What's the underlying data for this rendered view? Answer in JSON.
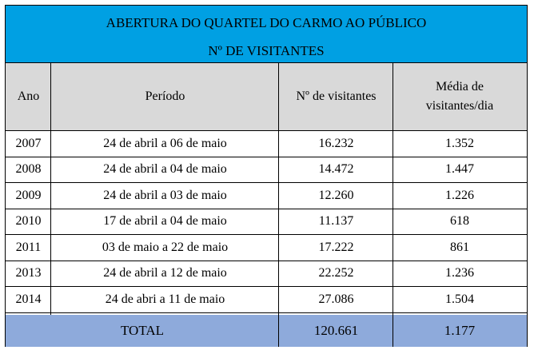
{
  "table": {
    "title_line1": "ABERTURA DO QUARTEL DO CARMO AO PÚBLICO",
    "title_line2": "Nº DE VISITANTES",
    "headers": {
      "ano": "Ano",
      "periodo": "Período",
      "visitantes": "Nº de visitantes",
      "media_line1": "Média de",
      "media_line2": "visitantes/dia"
    },
    "rows": [
      {
        "ano": "2007",
        "periodo": "24 de abril a 06 de maio",
        "visitantes": "16.232",
        "media": "1.352"
      },
      {
        "ano": "2008",
        "periodo": "24 de abril a 04 de maio",
        "visitantes": "14.472",
        "media": "1.447"
      },
      {
        "ano": "2009",
        "periodo": "24 de abril a 03 de maio",
        "visitantes": "12.260",
        "media": "1.226"
      },
      {
        "ano": "2010",
        "periodo": "17 de abril a 04 de maio",
        "visitantes": "11.137",
        "media": "618"
      },
      {
        "ano": "2011",
        "periodo": "03 de maio a 22 de maio",
        "visitantes": "17.222",
        "media": "861"
      },
      {
        "ano": "2013",
        "periodo": "24 de abril a 12 de maio",
        "visitantes": "22.252",
        "media": "1.236"
      },
      {
        "ano": "2014",
        "periodo": "24 de abri a 11 de maio",
        "visitantes": "27.086",
        "media": "1.504"
      }
    ],
    "total": {
      "label": "TOTAL",
      "visitantes": "120.661",
      "media": "1.177"
    },
    "colors": {
      "title_bg": "#00a0e3",
      "header_bg": "#d9d9d9",
      "total_bg": "#8eaadb"
    }
  }
}
